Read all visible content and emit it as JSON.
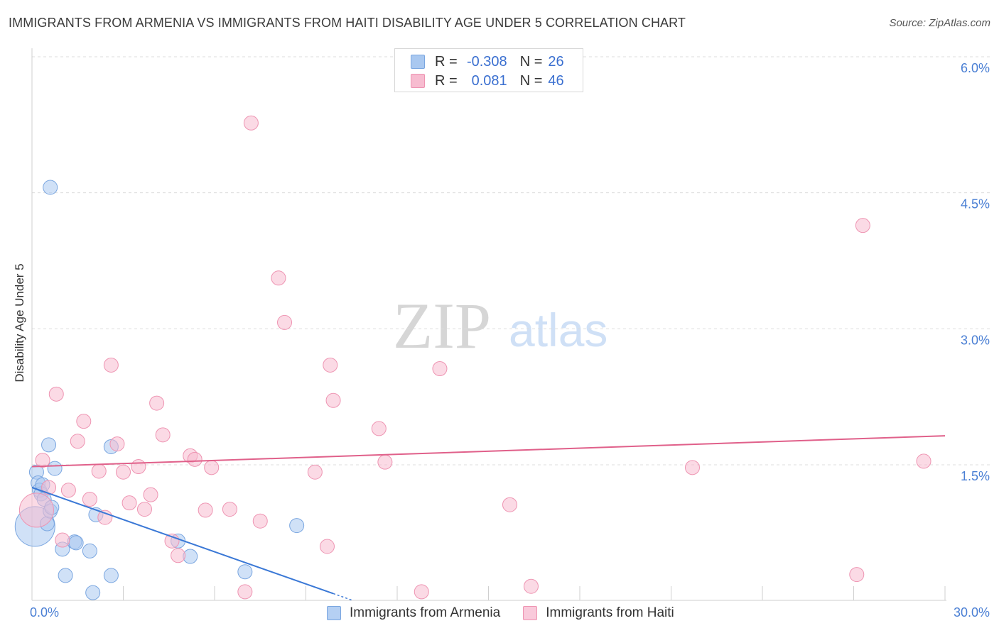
{
  "title": "IMMIGRANTS FROM ARMENIA VS IMMIGRANTS FROM HAITI DISABILITY AGE UNDER 5 CORRELATION CHART",
  "source": "Source: ZipAtlas.com",
  "watermark": {
    "left": "ZIP",
    "right": "atlas"
  },
  "legend_top": [
    {
      "r_label": "R = ",
      "r_value": "-0.308",
      "n_label": "N = ",
      "n_value": "26",
      "color": "#a9c8f0",
      "border": "#7aa6e0"
    },
    {
      "r_label": "R = ",
      "r_value": "0.081",
      "n_label": "N = ",
      "n_value": "46",
      "color": "#f7bcd0",
      "border": "#ee94b2"
    }
  ],
  "legend_bottom": [
    {
      "label": "Immigrants from Armenia",
      "color": "#b5d0f3",
      "border": "#7aa6e0"
    },
    {
      "label": "Immigrants from Haiti",
      "color": "#f9cadb",
      "border": "#ee94b2"
    }
  ],
  "chart_data": {
    "type": "scatter",
    "title": "IMMIGRANTS FROM ARMENIA VS IMMIGRANTS FROM HAITI DISABILITY AGE UNDER 5 CORRELATION CHART",
    "xlabel": "",
    "ylabel": "Disability Age Under 5",
    "xlim": [
      0,
      30
    ],
    "ylim": [
      0,
      6.3
    ],
    "x_tick_labels": [
      {
        "value": 0,
        "label": "0.0%"
      },
      {
        "value": 30,
        "label": "30.0%"
      }
    ],
    "y_ticks": [
      {
        "value": 1.5,
        "label": "1.5%"
      },
      {
        "value": 3.0,
        "label": "3.0%"
      },
      {
        "value": 4.5,
        "label": "4.5%"
      },
      {
        "value": 6.0,
        "label": "6.0%"
      }
    ],
    "x_minor_ticks": [
      3,
      6,
      9,
      12,
      15,
      18,
      21,
      24,
      27,
      30
    ],
    "grid": true,
    "series": [
      {
        "name": "Immigrants from Armenia",
        "color": "#a9c8f0",
        "stroke": "#7aa6e0",
        "line_color": "#3a78d6",
        "trend": {
          "x": [
            0,
            9.9
          ],
          "y": [
            1.25,
            0.08
          ],
          "dash_to_x": 10.5
        },
        "points": [
          [
            0.1,
            0.82,
            28
          ],
          [
            0.15,
            1.42,
            10
          ],
          [
            0.2,
            1.3,
            10
          ],
          [
            0.25,
            1.22,
            10
          ],
          [
            0.3,
            1.18,
            10
          ],
          [
            0.35,
            1.28,
            10
          ],
          [
            0.4,
            1.12,
            10
          ],
          [
            0.5,
            0.85,
            10
          ],
          [
            0.55,
            1.72,
            10
          ],
          [
            0.6,
            0.99,
            10
          ],
          [
            0.65,
            1.03,
            10
          ],
          [
            0.75,
            1.46,
            10
          ],
          [
            1.0,
            0.57,
            10
          ],
          [
            1.1,
            0.28,
            10
          ],
          [
            1.4,
            0.65,
            10
          ],
          [
            1.45,
            0.64,
            10
          ],
          [
            1.9,
            0.55,
            10
          ],
          [
            2.1,
            0.95,
            10
          ],
          [
            2.6,
            0.28,
            10
          ],
          [
            2.6,
            1.7,
            10
          ],
          [
            2.0,
            0.09,
            10
          ],
          [
            0.6,
            4.56,
            10
          ],
          [
            4.8,
            0.66,
            10
          ],
          [
            5.2,
            0.49,
            10
          ],
          [
            7.0,
            0.32,
            10
          ],
          [
            8.7,
            0.83,
            10
          ]
        ]
      },
      {
        "name": "Immigrants from Haiti",
        "color": "#f7bcd0",
        "stroke": "#ee94b2",
        "line_color": "#e0608a",
        "trend": {
          "x": [
            0,
            30
          ],
          "y": [
            1.48,
            1.82
          ]
        },
        "points": [
          [
            0.15,
            1.0,
            24
          ],
          [
            0.35,
            1.55,
            10
          ],
          [
            0.55,
            1.25,
            10
          ],
          [
            0.8,
            2.28,
            10
          ],
          [
            1.0,
            0.67,
            10
          ],
          [
            1.2,
            1.22,
            10
          ],
          [
            1.5,
            1.76,
            10
          ],
          [
            1.7,
            1.98,
            10
          ],
          [
            1.9,
            1.12,
            10
          ],
          [
            2.2,
            1.43,
            10
          ],
          [
            2.4,
            0.92,
            10
          ],
          [
            2.6,
            2.6,
            10
          ],
          [
            2.8,
            1.73,
            10
          ],
          [
            3.0,
            1.42,
            10
          ],
          [
            3.2,
            1.08,
            10
          ],
          [
            3.5,
            1.48,
            10
          ],
          [
            3.7,
            1.01,
            10
          ],
          [
            3.9,
            1.17,
            10
          ],
          [
            4.1,
            2.18,
            10
          ],
          [
            4.3,
            1.83,
            10
          ],
          [
            4.6,
            0.66,
            10
          ],
          [
            4.8,
            0.5,
            10
          ],
          [
            5.2,
            1.6,
            10
          ],
          [
            5.35,
            1.56,
            10
          ],
          [
            5.7,
            1.0,
            10
          ],
          [
            5.9,
            1.47,
            10
          ],
          [
            6.5,
            1.01,
            10
          ],
          [
            7.0,
            0.1,
            10
          ],
          [
            7.2,
            5.27,
            10
          ],
          [
            7.5,
            0.88,
            10
          ],
          [
            8.1,
            3.56,
            10
          ],
          [
            8.3,
            3.07,
            10
          ],
          [
            9.3,
            1.42,
            10
          ],
          [
            9.7,
            0.6,
            10
          ],
          [
            9.8,
            2.6,
            10
          ],
          [
            9.9,
            2.21,
            10
          ],
          [
            11.4,
            1.9,
            10
          ],
          [
            11.6,
            1.53,
            10
          ],
          [
            12.8,
            0.1,
            10
          ],
          [
            13.4,
            2.56,
            10
          ],
          [
            15.7,
            1.06,
            10
          ],
          [
            16.4,
            0.16,
            10
          ],
          [
            21.7,
            1.47,
            10
          ],
          [
            27.1,
            0.29,
            10
          ],
          [
            27.3,
            4.14,
            10
          ],
          [
            29.3,
            1.54,
            10
          ]
        ]
      }
    ]
  }
}
